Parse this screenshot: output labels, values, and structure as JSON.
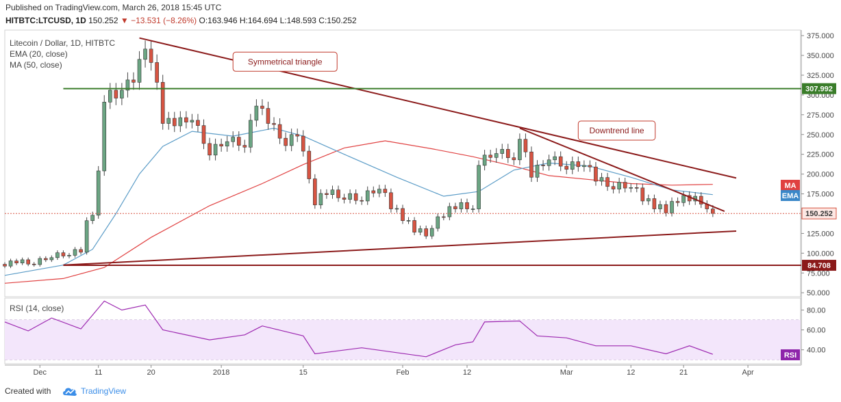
{
  "header": {
    "published": "Published on TradingView.com, March 26, 2018 15:45 UTC",
    "symbol": "HITBTC:LTCUSD, 1D",
    "last": "150.252",
    "change": "▼ −13.531 (−8.26%)",
    "ohlc": "O:163.946 H:164.694 L:148.593 C:150.252"
  },
  "legend": {
    "title": "Litecoin / Dollar, 1D, HITBTC",
    "ema": "EMA (20, close)",
    "ma": "MA (50, close)",
    "rsi": "RSI (14, close)"
  },
  "footer": {
    "created": "Created with",
    "brand": "TradingView"
  },
  "colors": {
    "up": "#6ba583",
    "down": "#d75442",
    "ema": "#5b9cc7",
    "ma": "#e04040",
    "trend": "#8b1a1a",
    "resistance": "#3a7d2a",
    "support": "#8b1a1a",
    "rsi_band": "#f3e6fb",
    "rsi_line": "#9c27b0"
  },
  "chart_data": {
    "type": "candlestick",
    "y_price_range": [
      45,
      382
    ],
    "y_price_ticks": [
      50,
      75,
      100,
      125,
      150,
      175,
      200,
      225,
      250,
      275,
      300,
      325,
      350,
      375
    ],
    "y_rsi_ticks": [
      40,
      60,
      80
    ],
    "x_labels": [
      {
        "label": "Dec",
        "date": "2017-12-01"
      },
      {
        "label": "11",
        "date": "2017-12-11"
      },
      {
        "label": "20",
        "date": "2017-12-20"
      },
      {
        "label": "2018",
        "date": "2018-01-01"
      },
      {
        "label": "15",
        "date": "2018-01-15"
      },
      {
        "label": "Feb",
        "date": "2018-02-01"
      },
      {
        "label": "12",
        "date": "2018-02-12"
      },
      {
        "label": "Mar",
        "date": "2018-03-01"
      },
      {
        "label": "12",
        "date": "2018-03-12"
      },
      {
        "label": "21",
        "date": "2018-03-21"
      },
      {
        "label": "Apr",
        "date": "2018-04-01"
      }
    ],
    "x_range": [
      "2017-11-25",
      "2018-04-10"
    ],
    "closes": [
      {
        "date": "2017-11-25",
        "close": 86
      },
      {
        "date": "2017-11-27",
        "close": 90
      },
      {
        "date": "2017-11-30",
        "close": 88
      },
      {
        "date": "2017-12-03",
        "close": 97
      },
      {
        "date": "2017-12-06",
        "close": 100
      },
      {
        "date": "2017-12-08",
        "close": 104
      },
      {
        "date": "2017-12-09",
        "close": 145
      },
      {
        "date": "2017-12-10",
        "close": 152
      },
      {
        "date": "2017-12-11",
        "close": 208
      },
      {
        "date": "2017-12-12",
        "close": 295
      },
      {
        "date": "2017-12-13",
        "close": 310
      },
      {
        "date": "2017-12-14",
        "close": 300
      },
      {
        "date": "2017-12-15",
        "close": 310
      },
      {
        "date": "2017-12-17",
        "close": 320
      },
      {
        "date": "2017-12-19",
        "close": 362
      },
      {
        "date": "2017-12-20",
        "close": 345
      },
      {
        "date": "2017-12-21",
        "close": 320
      },
      {
        "date": "2017-12-22",
        "close": 268
      },
      {
        "date": "2017-12-24",
        "close": 265
      },
      {
        "date": "2017-12-27",
        "close": 272
      },
      {
        "date": "2017-12-30",
        "close": 228
      },
      {
        "date": "2018-01-02",
        "close": 245
      },
      {
        "date": "2018-01-05",
        "close": 238
      },
      {
        "date": "2018-01-07",
        "close": 290
      },
      {
        "date": "2018-01-09",
        "close": 268
      },
      {
        "date": "2018-01-12",
        "close": 240
      },
      {
        "date": "2018-01-14",
        "close": 252
      },
      {
        "date": "2018-01-16",
        "close": 198
      },
      {
        "date": "2018-01-17",
        "close": 165
      },
      {
        "date": "2018-01-19",
        "close": 178
      },
      {
        "date": "2018-01-22",
        "close": 172
      },
      {
        "date": "2018-01-25",
        "close": 170
      },
      {
        "date": "2018-01-28",
        "close": 185
      },
      {
        "date": "2018-01-30",
        "close": 160
      },
      {
        "date": "2018-02-01",
        "close": 145
      },
      {
        "date": "2018-02-03",
        "close": 130
      },
      {
        "date": "2018-02-05",
        "close": 125
      },
      {
        "date": "2018-02-06",
        "close": 135
      },
      {
        "date": "2018-02-08",
        "close": 150
      },
      {
        "date": "2018-02-10",
        "close": 160
      },
      {
        "date": "2018-02-13",
        "close": 160
      },
      {
        "date": "2018-02-14",
        "close": 215
      },
      {
        "date": "2018-02-17",
        "close": 230
      },
      {
        "date": "2018-02-20",
        "close": 222
      },
      {
        "date": "2018-02-21",
        "close": 248
      },
      {
        "date": "2018-02-23",
        "close": 200
      },
      {
        "date": "2018-02-26",
        "close": 222
      },
      {
        "date": "2018-03-01",
        "close": 210
      },
      {
        "date": "2018-03-04",
        "close": 215
      },
      {
        "date": "2018-03-06",
        "close": 195
      },
      {
        "date": "2018-03-09",
        "close": 185
      },
      {
        "date": "2018-03-12",
        "close": 187
      },
      {
        "date": "2018-03-14",
        "close": 170
      },
      {
        "date": "2018-03-16",
        "close": 160
      },
      {
        "date": "2018-03-18",
        "close": 155
      },
      {
        "date": "2018-03-20",
        "close": 168
      },
      {
        "date": "2018-03-22",
        "close": 170
      },
      {
        "date": "2018-03-24",
        "close": 166
      },
      {
        "date": "2018-03-25",
        "close": 160
      },
      {
        "date": "2018-03-26",
        "close": 150.252
      }
    ],
    "ema20": [
      {
        "date": "2017-11-25",
        "v": 72
      },
      {
        "date": "2017-12-05",
        "v": 85
      },
      {
        "date": "2017-12-10",
        "v": 105
      },
      {
        "date": "2017-12-14",
        "v": 150
      },
      {
        "date": "2017-12-18",
        "v": 200
      },
      {
        "date": "2017-12-22",
        "v": 235
      },
      {
        "date": "2017-12-27",
        "v": 254
      },
      {
        "date": "2018-01-03",
        "v": 248
      },
      {
        "date": "2018-01-10",
        "v": 258
      },
      {
        "date": "2018-01-15",
        "v": 248
      },
      {
        "date": "2018-01-22",
        "v": 225
      },
      {
        "date": "2018-01-31",
        "v": 196
      },
      {
        "date": "2018-02-08",
        "v": 172
      },
      {
        "date": "2018-02-14",
        "v": 178
      },
      {
        "date": "2018-02-20",
        "v": 205
      },
      {
        "date": "2018-02-26",
        "v": 214
      },
      {
        "date": "2018-03-05",
        "v": 210
      },
      {
        "date": "2018-03-12",
        "v": 196
      },
      {
        "date": "2018-03-19",
        "v": 180
      },
      {
        "date": "2018-03-26",
        "v": 174
      }
    ],
    "ma50": [
      {
        "date": "2017-11-25",
        "v": 62
      },
      {
        "date": "2017-12-05",
        "v": 68
      },
      {
        "date": "2017-12-12",
        "v": 82
      },
      {
        "date": "2017-12-20",
        "v": 120
      },
      {
        "date": "2017-12-30",
        "v": 160
      },
      {
        "date": "2018-01-08",
        "v": 188
      },
      {
        "date": "2018-01-15",
        "v": 212
      },
      {
        "date": "2018-01-22",
        "v": 233
      },
      {
        "date": "2018-01-29",
        "v": 242
      },
      {
        "date": "2018-02-06",
        "v": 232
      },
      {
        "date": "2018-02-13",
        "v": 222
      },
      {
        "date": "2018-02-20",
        "v": 210
      },
      {
        "date": "2018-02-26",
        "v": 198
      },
      {
        "date": "2018-03-05",
        "v": 193
      },
      {
        "date": "2018-03-12",
        "v": 188
      },
      {
        "date": "2018-03-19",
        "v": 186
      },
      {
        "date": "2018-03-26",
        "v": 187
      }
    ],
    "rsi14": [
      {
        "date": "2017-11-25",
        "v": 68
      },
      {
        "date": "2017-11-29",
        "v": 59
      },
      {
        "date": "2017-12-03",
        "v": 72
      },
      {
        "date": "2017-12-08",
        "v": 61
      },
      {
        "date": "2017-12-12",
        "v": 89
      },
      {
        "date": "2017-12-15",
        "v": 80
      },
      {
        "date": "2017-12-19",
        "v": 85
      },
      {
        "date": "2017-12-22",
        "v": 60
      },
      {
        "date": "2017-12-30",
        "v": 50
      },
      {
        "date": "2018-01-05",
        "v": 55
      },
      {
        "date": "2018-01-08",
        "v": 64
      },
      {
        "date": "2018-01-15",
        "v": 54
      },
      {
        "date": "2018-01-17",
        "v": 36
      },
      {
        "date": "2018-01-25",
        "v": 42
      },
      {
        "date": "2018-02-05",
        "v": 33
      },
      {
        "date": "2018-02-10",
        "v": 45
      },
      {
        "date": "2018-02-13",
        "v": 48
      },
      {
        "date": "2018-02-15",
        "v": 68
      },
      {
        "date": "2018-02-21",
        "v": 69
      },
      {
        "date": "2018-02-24",
        "v": 54
      },
      {
        "date": "2018-03-01",
        "v": 52
      },
      {
        "date": "2018-03-06",
        "v": 44
      },
      {
        "date": "2018-03-12",
        "v": 44
      },
      {
        "date": "2018-03-18",
        "v": 36
      },
      {
        "date": "2018-03-22",
        "v": 44
      },
      {
        "date": "2018-03-26",
        "v": 35.5
      }
    ],
    "trendlines": {
      "descending_triangle_top": {
        "start": {
          "date": "2017-12-18",
          "price": 372
        },
        "end": {
          "date": "2018-03-30",
          "price": 195
        }
      },
      "ascending_triangle_bottom": {
        "start": {
          "date": "2017-12-05",
          "price": 85
        },
        "end": {
          "date": "2018-03-30",
          "price": 128
        }
      },
      "downtrend_line": {
        "start": {
          "date": "2018-02-21",
          "price": 258
        },
        "end": {
          "date": "2018-03-28",
          "price": 153
        }
      },
      "resistance_level": {
        "price": 307.992,
        "label": "307.992"
      },
      "support_level": {
        "price": 84.708,
        "label": "84.708"
      },
      "last_price": {
        "price": 150.252,
        "label": "150.252"
      }
    },
    "annotations": [
      {
        "text": "Symmetrical triangle",
        "date": "2018-01-03",
        "price": 342
      },
      {
        "text": "Downtrend line",
        "date": "2018-03-03",
        "price": 255
      }
    ],
    "markers": {
      "ma": "MA",
      "ema": "EMA",
      "rsi": "RSI"
    }
  }
}
